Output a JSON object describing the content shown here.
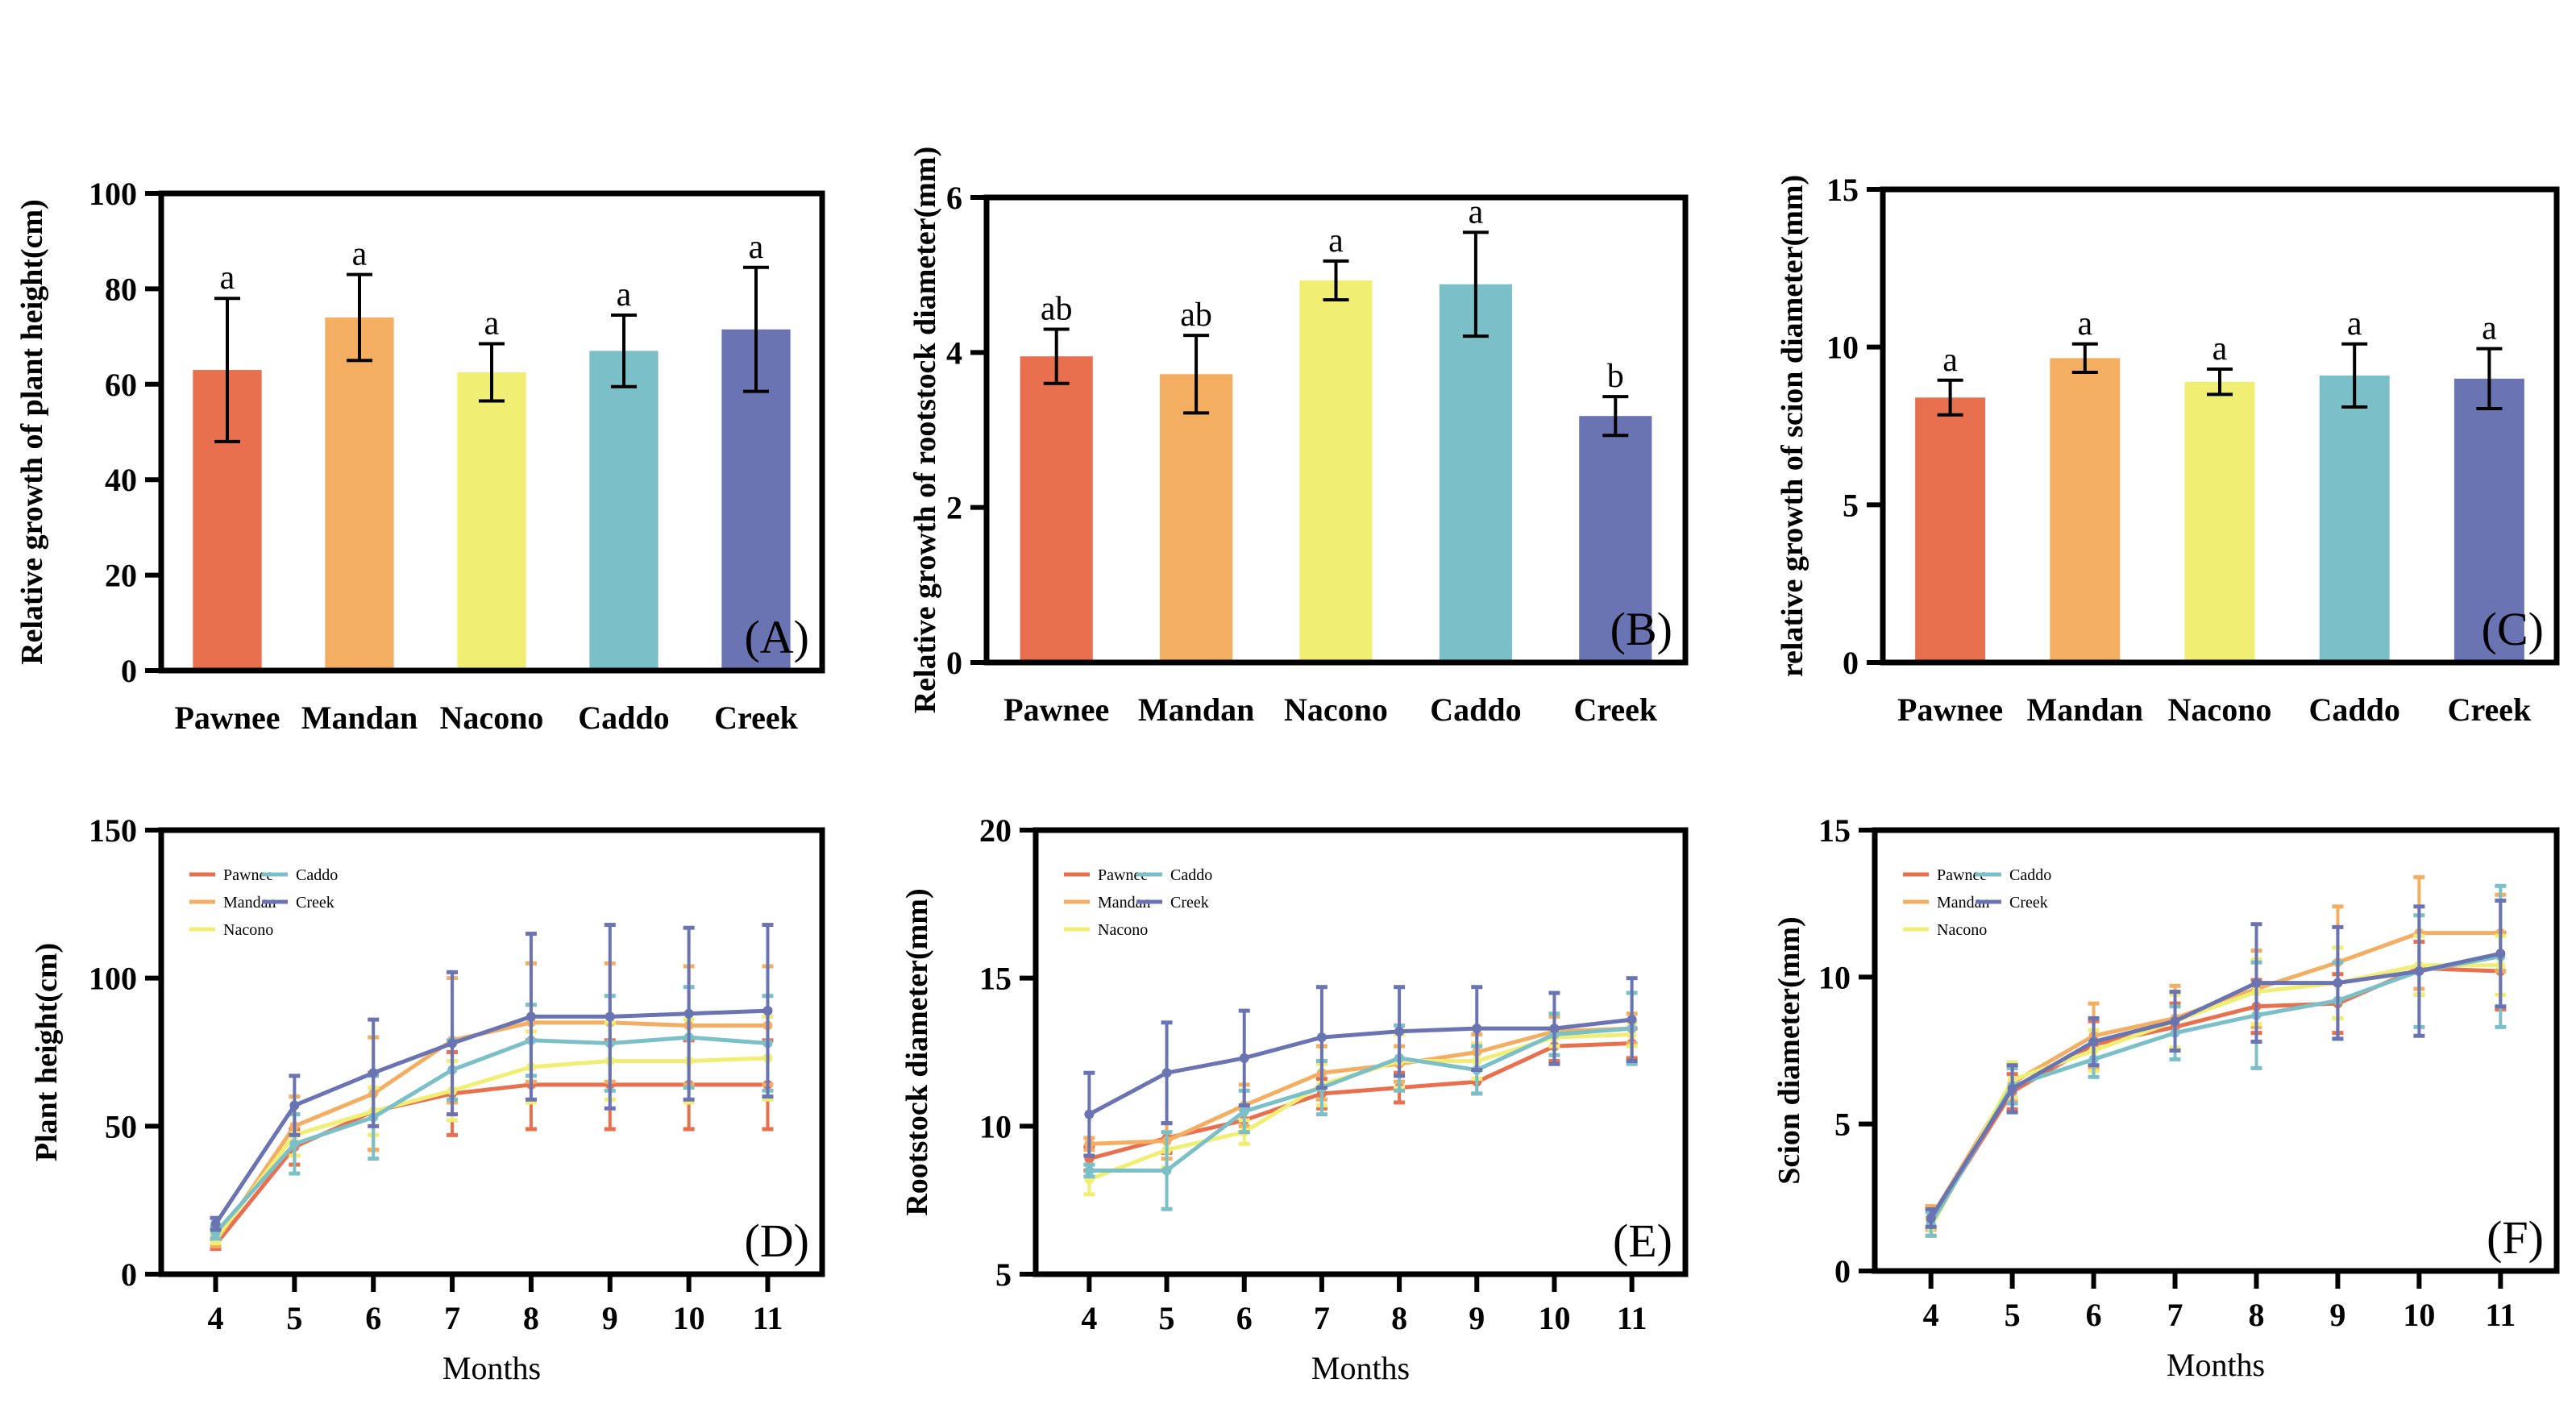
{
  "colors": {
    "Pawnee": "#E8704F",
    "Mandan": "#F4AE62",
    "Nacono": "#F1EE74",
    "Caddo": "#7BBFC8",
    "Creek": "#6A74B2"
  },
  "chart_data": [
    {
      "type": "bar",
      "panel": "(A)",
      "title": "",
      "ylabel": "Relative growth of plant height(cm)",
      "xlabel": "",
      "categories": [
        "Pawnee",
        "Mandan",
        "Nacono",
        "Caddo",
        "Creek"
      ],
      "values": [
        63,
        74,
        62.5,
        67,
        71.5
      ],
      "errors": [
        15,
        9,
        6,
        7.5,
        13
      ],
      "significance": [
        "a",
        "a",
        "a",
        "a",
        "a"
      ],
      "ylim": [
        0,
        100
      ],
      "yticks": [
        "0",
        "20",
        "40",
        "60",
        "80",
        "100"
      ]
    },
    {
      "type": "bar",
      "panel": "(B)",
      "title": "",
      "ylabel": "Relative growth of rootstock diameter(mm)",
      "xlabel": "",
      "categories": [
        "Pawnee",
        "Mandan",
        "Nacono",
        "Caddo",
        "Creek"
      ],
      "values": [
        3.95,
        3.72,
        4.93,
        4.88,
        3.18
      ],
      "errors": [
        0.35,
        0.5,
        0.25,
        0.67,
        0.25
      ],
      "significance": [
        "ab",
        "ab",
        "a",
        "a",
        "b"
      ],
      "ylim": [
        0,
        6
      ],
      "yticks": [
        "0",
        "2",
        "4",
        "6"
      ]
    },
    {
      "type": "bar",
      "panel": "(C)",
      "title": "",
      "ylabel": "relative growth of scion diameter(mm)",
      "xlabel": "",
      "categories": [
        "Pawnee",
        "Mandan",
        "Nacono",
        "Caddo",
        "Creek"
      ],
      "values": [
        8.4,
        9.65,
        8.9,
        9.1,
        9.0
      ],
      "errors": [
        0.55,
        0.45,
        0.4,
        1.0,
        0.95
      ],
      "significance": [
        "a",
        "a",
        "a",
        "a",
        "a"
      ],
      "ylim": [
        0,
        15
      ],
      "yticks": [
        "0",
        "5",
        "10",
        "15"
      ]
    },
    {
      "type": "line",
      "panel": "(D)",
      "ylabel": "Plant height(cm)",
      "xlabel": "Months",
      "x": [
        4,
        5,
        6,
        7,
        8,
        9,
        10,
        11
      ],
      "xticks": [
        "4",
        "5",
        "6",
        "7",
        "8",
        "9",
        "10",
        "11"
      ],
      "ylim": [
        0,
        150
      ],
      "yticks": [
        "0",
        "50",
        "100",
        "150"
      ],
      "legend": "top-left",
      "series": [
        {
          "name": "Pawnee",
          "values": [
            10,
            43,
            55,
            61,
            64,
            64,
            64,
            64
          ],
          "errors": [
            1.5,
            6,
            13,
            14,
            15,
            15,
            15,
            15
          ]
        },
        {
          "name": "Mandan",
          "values": [
            11,
            50,
            61,
            79,
            85,
            85,
            84,
            84
          ],
          "errors": [
            1.5,
            10,
            19,
            21,
            20,
            20,
            20,
            20
          ]
        },
        {
          "name": "Nacono",
          "values": [
            12,
            47,
            55,
            62,
            70,
            72,
            72,
            73
          ],
          "errors": [
            1.5,
            7,
            8,
            10,
            12,
            13,
            14,
            14
          ]
        },
        {
          "name": "Caddo",
          "values": [
            14,
            44,
            53,
            69,
            79,
            78,
            80,
            78
          ],
          "errors": [
            2,
            10,
            14,
            10,
            12,
            16,
            17,
            16
          ]
        },
        {
          "name": "Creek",
          "values": [
            17,
            57,
            68,
            78,
            87,
            87,
            88,
            89
          ],
          "errors": [
            2,
            10,
            18,
            24,
            28,
            31,
            29,
            29
          ]
        }
      ]
    },
    {
      "type": "line",
      "panel": "(E)",
      "ylabel": "Rootstock diameter(mm)",
      "xlabel": "Months",
      "x": [
        4,
        5,
        6,
        7,
        8,
        9,
        10,
        11
      ],
      "xticks": [
        "4",
        "5",
        "6",
        "7",
        "8",
        "9",
        "10",
        "11"
      ],
      "ylim": [
        5,
        20
      ],
      "yticks": [
        "5",
        "10",
        "15",
        "20"
      ],
      "legend": "top-left",
      "series": [
        {
          "name": "Pawnee",
          "values": [
            8.9,
            9.6,
            10.2,
            11.1,
            11.3,
            11.5,
            12.7,
            12.8
          ],
          "errors": [
            0.4,
            0.5,
            0.4,
            0.5,
            0.5,
            0.4,
            0.5,
            0.5
          ]
        },
        {
          "name": "Mandan",
          "values": [
            9.4,
            9.5,
            10.7,
            11.8,
            12.1,
            12.5,
            13.2,
            13.3
          ],
          "errors": [
            0.2,
            0.6,
            0.7,
            0.9,
            0.6,
            0.6,
            0.5,
            0.5
          ]
        },
        {
          "name": "Nacono",
          "values": [
            8.2,
            9.2,
            9.8,
            11.4,
            12.2,
            12.2,
            13.0,
            13.1
          ],
          "errors": [
            0.5,
            0.6,
            0.4,
            0.7,
            0.9,
            0.6,
            0.3,
            0.4
          ]
        },
        {
          "name": "Caddo",
          "values": [
            8.5,
            8.5,
            10.5,
            11.3,
            12.3,
            11.9,
            13.1,
            13.3
          ],
          "errors": [
            0.2,
            1.3,
            0.7,
            0.9,
            1.1,
            0.8,
            0.7,
            1.2
          ]
        },
        {
          "name": "Creek",
          "values": [
            10.4,
            11.8,
            12.3,
            13.0,
            13.2,
            13.3,
            13.3,
            13.6
          ],
          "errors": [
            1.4,
            1.7,
            1.6,
            1.7,
            1.5,
            1.4,
            1.2,
            1.4
          ]
        }
      ]
    },
    {
      "type": "line",
      "panel": "(F)",
      "ylabel": "Scion diameter(mm)",
      "xlabel": "Months",
      "x": [
        4,
        5,
        6,
        7,
        8,
        9,
        10,
        11
      ],
      "xticks": [
        "4",
        "5",
        "6",
        "7",
        "8",
        "9",
        "10",
        "11"
      ],
      "ylim": [
        0,
        15
      ],
      "yticks": [
        "0",
        "5",
        "10",
        "15"
      ],
      "legend": "top-left",
      "series": [
        {
          "name": "Pawnee",
          "values": [
            1.7,
            6.1,
            7.7,
            8.3,
            9.0,
            9.1,
            10.3,
            10.2
          ],
          "errors": [
            0.5,
            0.6,
            0.8,
            0.8,
            0.9,
            1.0,
            0.9,
            1.3
          ]
        },
        {
          "name": "Mandan",
          "values": [
            1.8,
            6.4,
            8.0,
            8.6,
            9.6,
            10.5,
            11.5,
            11.5
          ],
          "errors": [
            0.4,
            0.6,
            1.1,
            1.1,
            1.3,
            1.9,
            1.9,
            1.3
          ]
        },
        {
          "name": "Nacono",
          "values": [
            1.5,
            6.5,
            7.5,
            8.5,
            9.5,
            9.8,
            10.4,
            10.4
          ],
          "errors": [
            0.3,
            0.6,
            0.7,
            0.9,
            1.1,
            1.2,
            1.0,
            1.0
          ]
        },
        {
          "name": "Caddo",
          "values": [
            1.6,
            6.3,
            7.2,
            8.1,
            8.7,
            9.2,
            10.2,
            10.7
          ],
          "errors": [
            0.4,
            0.6,
            0.6,
            0.9,
            1.8,
            1.3,
            1.9,
            2.4
          ]
        },
        {
          "name": "Creek",
          "values": [
            1.8,
            6.2,
            7.8,
            8.5,
            9.8,
            9.8,
            10.2,
            10.8
          ],
          "errors": [
            0.3,
            0.8,
            0.8,
            1.0,
            2.0,
            1.9,
            2.2,
            1.8
          ]
        }
      ]
    }
  ]
}
